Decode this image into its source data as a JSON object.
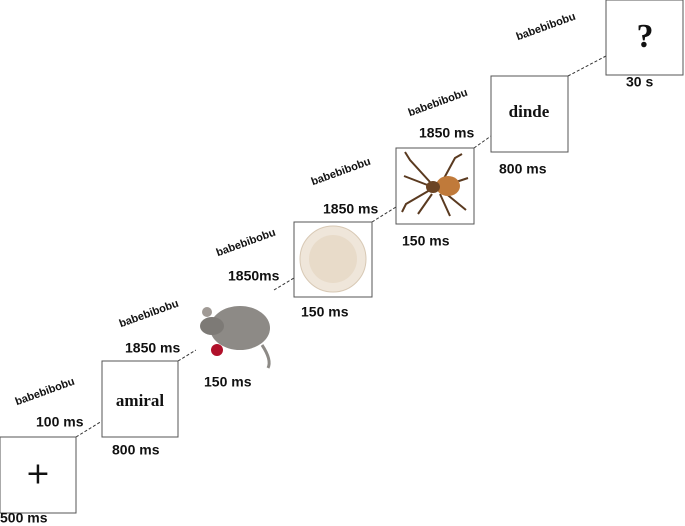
{
  "trial": {
    "frames": [
      {
        "content": "+",
        "duration": "500 ms"
      },
      {
        "content": "amiral",
        "duration": "800 ms"
      },
      {
        "duration": "150 ms"
      },
      {
        "duration": "150 ms"
      },
      {
        "duration": "150 ms"
      },
      {
        "content": "dinde",
        "duration": "800 ms"
      },
      {
        "content": "?",
        "duration": "30 s"
      }
    ],
    "intervals": [
      "100 ms",
      "1850 ms",
      "1850ms",
      "1850 ms",
      "1850 ms"
    ],
    "audio_labels": [
      "babebibobu",
      "babebibobu",
      "babebibobu",
      "babebibobu",
      "babebibobu",
      "babebibobu"
    ]
  }
}
